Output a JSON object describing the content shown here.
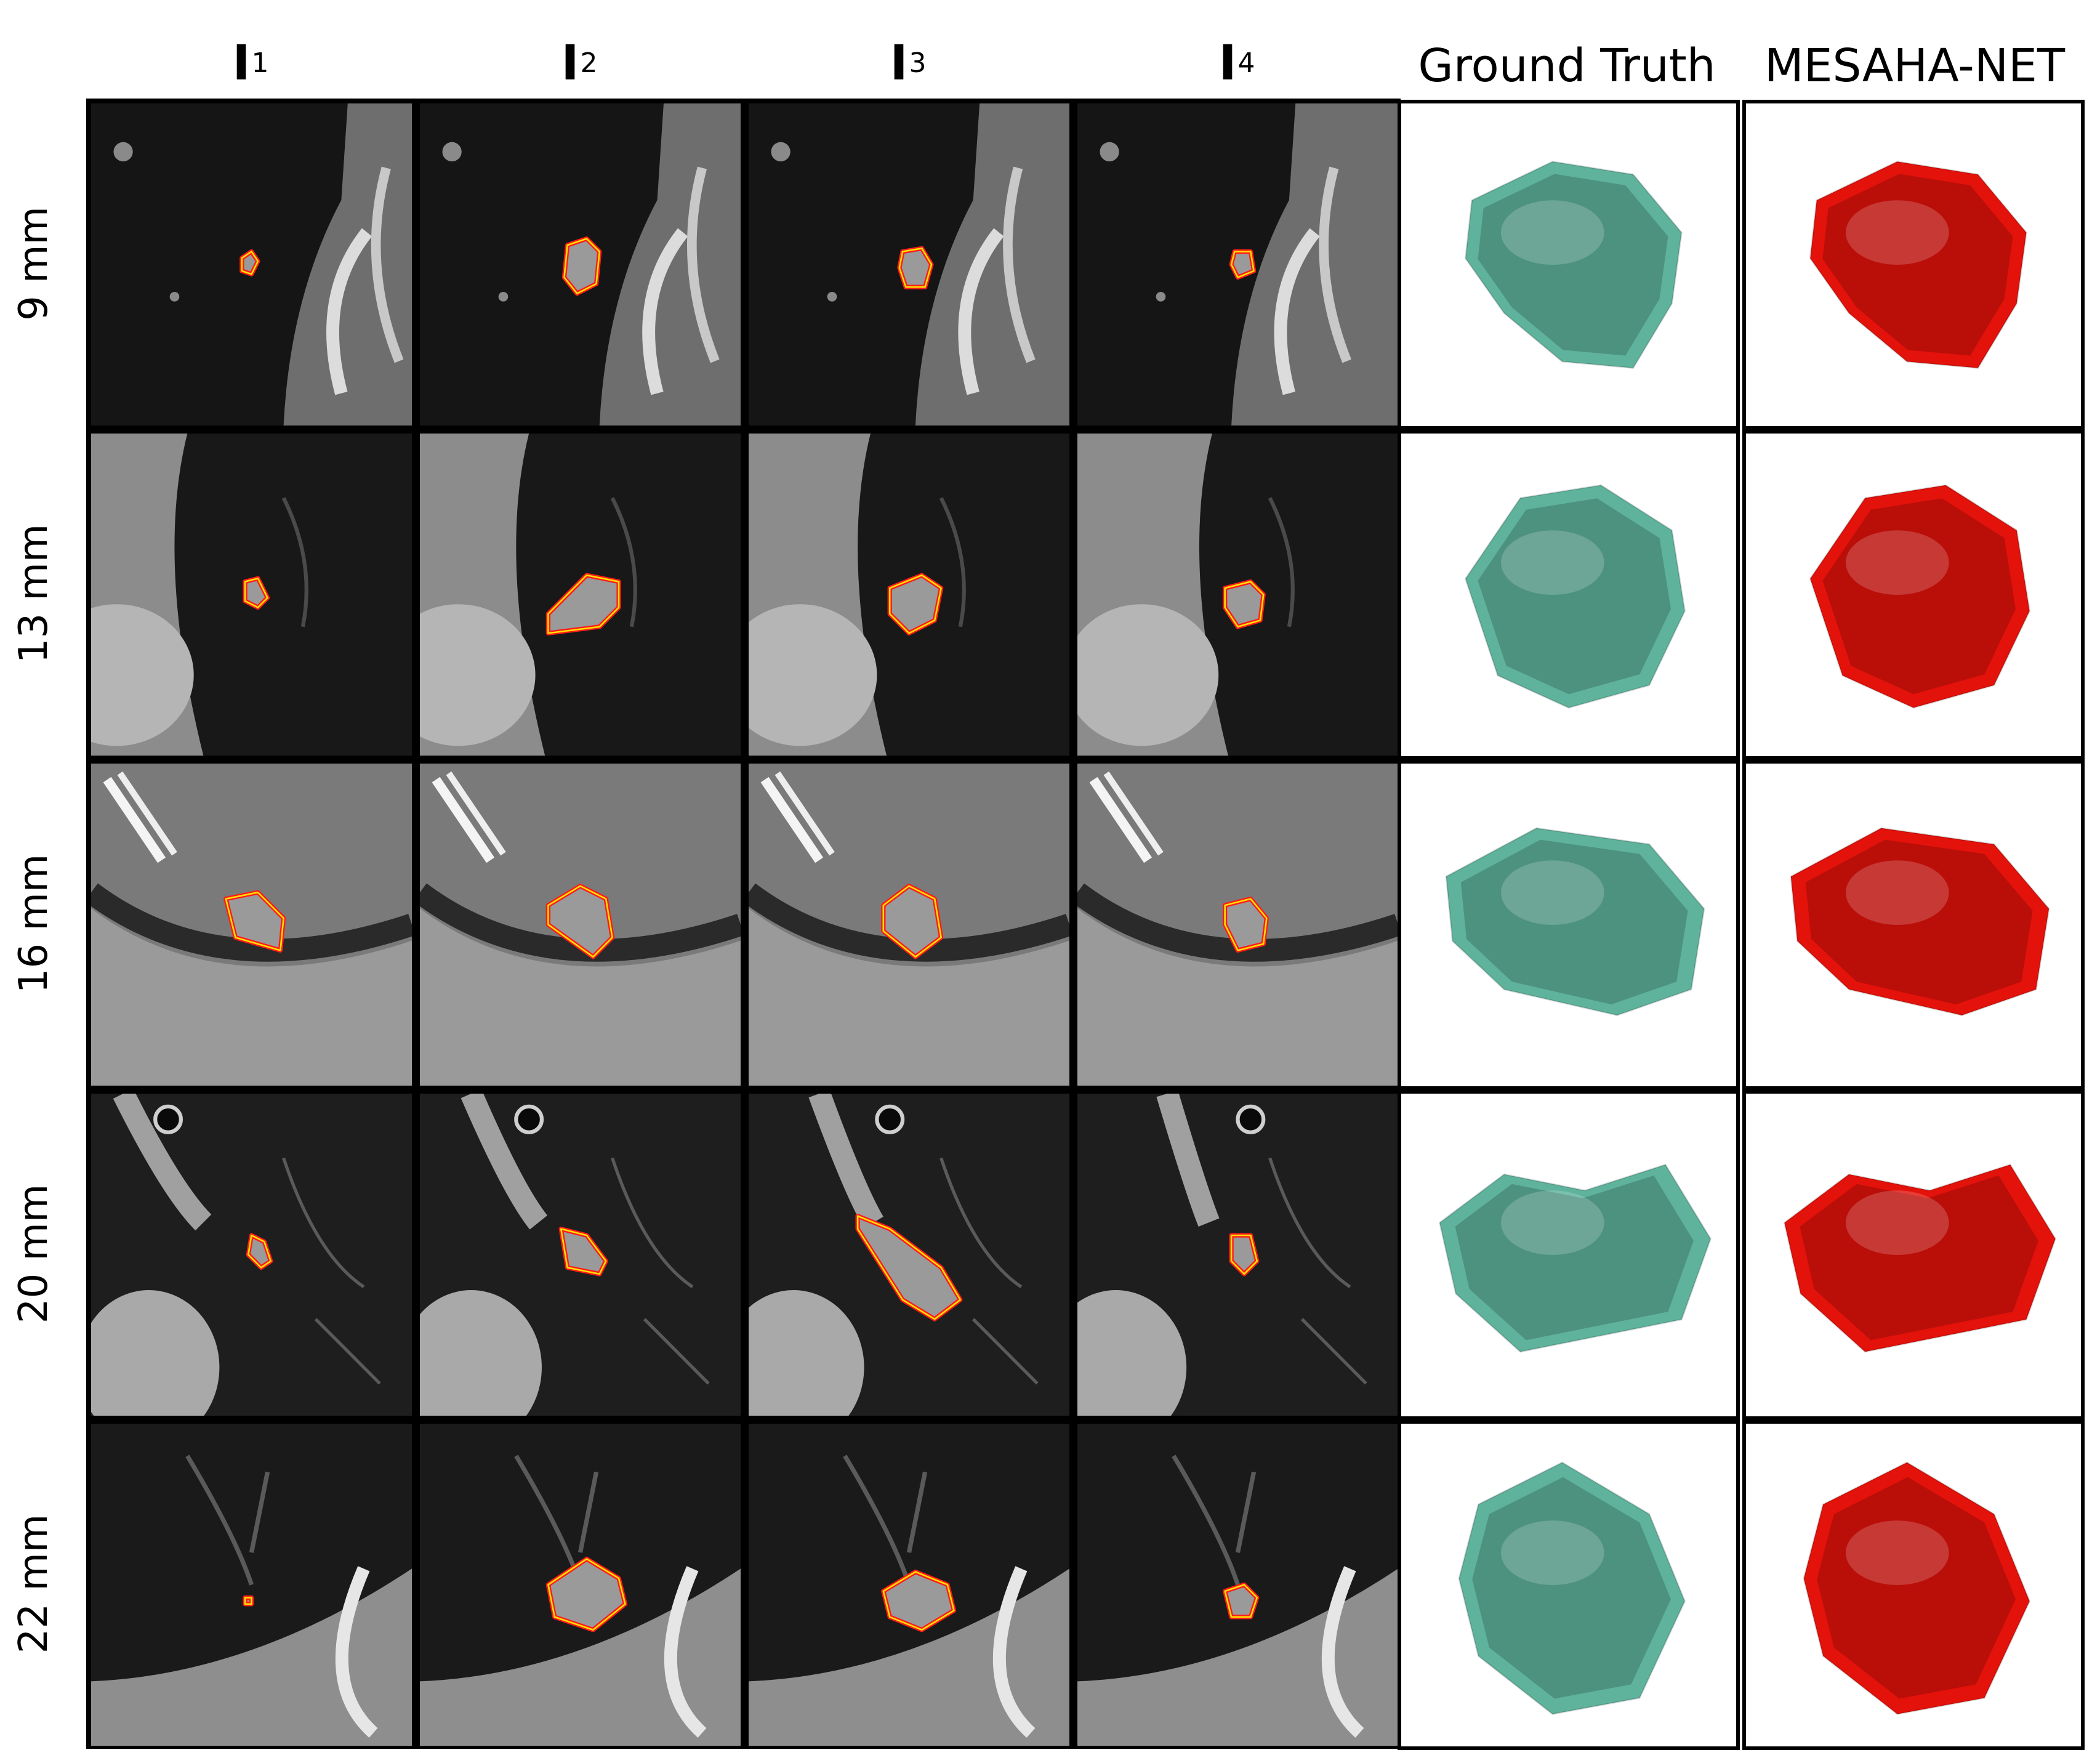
{
  "columns": [
    {
      "base": "I",
      "sub": "1"
    },
    {
      "base": "I",
      "sub": "2"
    },
    {
      "base": "I",
      "sub": "3"
    },
    {
      "base": "I",
      "sub": "4"
    }
  ],
  "render_columns": {
    "ground_truth": "Ground Truth",
    "prediction": "MESAHA-NET"
  },
  "rows": [
    {
      "label": "9 mm",
      "theme": "dark-lung"
    },
    {
      "label": "13 mm",
      "theme": "lung-bone"
    },
    {
      "label": "16 mm",
      "theme": "gray-tissue"
    },
    {
      "label": "20 mm",
      "theme": "vessels"
    },
    {
      "label": "22 mm",
      "theme": "lung-base"
    }
  ],
  "colors": {
    "ground_truth_mesh": "#5fb39c",
    "prediction_mesh": "#e3120b",
    "contour_outer": "#ff1a1a",
    "contour_inner": "#ffe000"
  }
}
